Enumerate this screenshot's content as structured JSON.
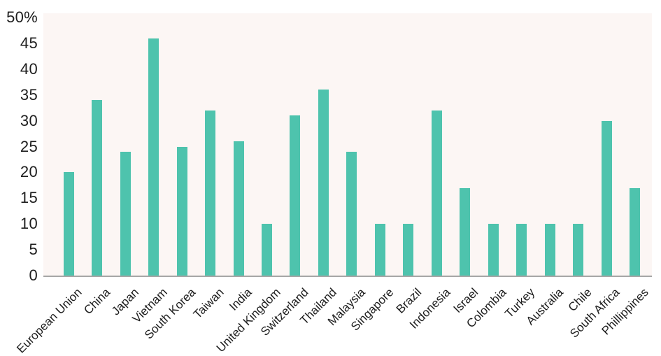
{
  "chart_data": {
    "type": "bar",
    "title": "",
    "xlabel": "",
    "ylabel": "",
    "categories": [
      "European Union",
      "China",
      "Japan",
      "Vietnam",
      "South Korea",
      "Taiwan",
      "India",
      "United Kingdom",
      "Switzerland",
      "Thailand",
      "Malaysia",
      "Singapore",
      "Brazil",
      "Indonesia",
      "Israel",
      "Colombia",
      "Turkey",
      "Australia",
      "Chile",
      "South Africa",
      "Phillippines"
    ],
    "values": [
      20,
      34,
      24,
      46,
      25,
      32,
      26,
      10,
      31,
      36,
      24,
      10,
      10,
      32,
      17,
      10,
      10,
      10,
      10,
      30,
      17
    ],
    "ylim": [
      0,
      50
    ],
    "y_ticks": [
      0,
      5,
      10,
      15,
      20,
      25,
      30,
      35,
      40,
      45,
      50
    ],
    "y_tick_labels": [
      "0",
      "5",
      "10",
      "15",
      "20",
      "25",
      "30",
      "35",
      "40",
      "45",
      "50%"
    ],
    "grid": false,
    "legend": null,
    "colors": {
      "bar": "#4ec3ad",
      "plot_background": "#fcf6f4",
      "axis_line": "#a6a6a6",
      "text": "#1d1d1d",
      "page_background": "#ffffff"
    }
  }
}
